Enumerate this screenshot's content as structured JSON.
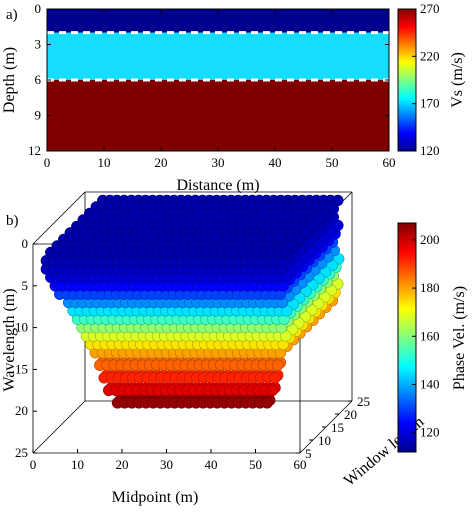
{
  "figure": {
    "panel_a_label": "a)",
    "panel_b_label": "b)"
  },
  "chart_data": [
    {
      "type": "heatmap",
      "panel": "a)",
      "xlabel": "Distance (m)",
      "ylabel": "Depth (m)",
      "xlim": [
        0,
        60
      ],
      "ylim": [
        12,
        0
      ],
      "xticks": [
        "0",
        "10",
        "20",
        "30",
        "40",
        "50",
        "60"
      ],
      "yticks": [
        "0",
        "3",
        "6",
        "9",
        "12"
      ],
      "layers": [
        {
          "top": 0,
          "bottom": 2,
          "vs": 120,
          "color": "#00008f"
        },
        {
          "top": 2,
          "bottom": 6,
          "vs": 170,
          "color": "#16dcff"
        },
        {
          "top": 6,
          "bottom": 12,
          "vs": 270,
          "color": "#800000"
        }
      ],
      "interfaces": [
        2,
        6
      ],
      "interface_style": "white dashed",
      "colorbar": {
        "label": "Vs (m/s)",
        "min": 120,
        "max": 270,
        "ticks": [
          "270",
          "220",
          "170",
          "120"
        ],
        "colormap": "jet"
      }
    },
    {
      "type": "scatter",
      "panel": "b)",
      "projection": "3d",
      "xlabel": "Midpoint (m)",
      "ylabel": "Window length",
      "zlabel": "Wavelength (m)",
      "xlim": [
        0,
        60
      ],
      "ylim": [
        5,
        25
      ],
      "zlim": [
        25,
        0
      ],
      "xticks": [
        "0",
        "10",
        "20",
        "30",
        "40",
        "50",
        "60"
      ],
      "yticks": [
        "5",
        "10",
        "15",
        "20",
        "25"
      ],
      "zticks": [
        "0",
        "5",
        "10",
        "15",
        "20",
        "25"
      ],
      "series": [
        {
          "wavelength": 1,
          "velocity": 116,
          "midpoint_range": [
            4,
            57
          ]
        },
        {
          "wavelength": 2,
          "velocity": 117,
          "midpoint_range": [
            3,
            57
          ]
        },
        {
          "wavelength": 3,
          "velocity": 118,
          "midpoint_range": [
            3,
            57
          ]
        },
        {
          "wavelength": 4,
          "velocity": 120,
          "midpoint_range": [
            4,
            57
          ]
        },
        {
          "wavelength": 5,
          "velocity": 124,
          "midpoint_range": [
            5,
            57
          ]
        },
        {
          "wavelength": 6,
          "velocity": 130,
          "midpoint_range": [
            6,
            57
          ]
        },
        {
          "wavelength": 7,
          "velocity": 137,
          "midpoint_range": [
            8,
            57
          ]
        },
        {
          "wavelength": 8,
          "velocity": 145,
          "midpoint_range": [
            9,
            57
          ]
        },
        {
          "wavelength": 9,
          "velocity": 153,
          "midpoint_range": [
            10,
            57
          ]
        },
        {
          "wavelength": 10,
          "velocity": 161,
          "midpoint_range": [
            11,
            57
          ]
        },
        {
          "wavelength": 11,
          "velocity": 168,
          "midpoint_range": [
            12,
            57
          ]
        },
        {
          "wavelength": 12,
          "velocity": 174,
          "midpoint_range": [
            13,
            57
          ]
        },
        {
          "wavelength": 13,
          "velocity": 180,
          "midpoint_range": [
            14,
            57
          ]
        },
        {
          "wavelength": 14.5,
          "velocity": 186,
          "midpoint_range": [
            15,
            56
          ]
        },
        {
          "wavelength": 16,
          "velocity": 192,
          "midpoint_range": [
            16,
            55
          ]
        },
        {
          "wavelength": 17.5,
          "velocity": 198,
          "midpoint_range": [
            17,
            55
          ]
        },
        {
          "wavelength": 19,
          "velocity": 205,
          "midpoint_range": [
            19,
            54
          ]
        }
      ],
      "colorbar": {
        "label": "Phase Vel. (m/s)",
        "min": 112,
        "max": 207,
        "ticks": [
          "200",
          "180",
          "160",
          "140",
          "120"
        ],
        "colormap": "jet"
      }
    }
  ]
}
